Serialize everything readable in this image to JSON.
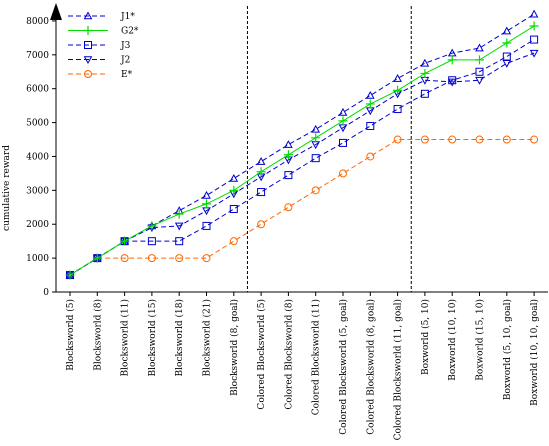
{
  "chart_data": {
    "type": "line",
    "ylabel": "cumulative reward",
    "xlabel": "",
    "ylim": [
      0,
      8500
    ],
    "yticks": [
      0,
      1000,
      2000,
      3000,
      4000,
      5000,
      6000,
      7000,
      8000
    ],
    "grid": false,
    "legend_position": "top-left",
    "categories": [
      "Blocksworld (5)",
      "Blocksworld (8)",
      "Blocksworld (11)",
      "Blocksworld (15)",
      "Blocksworld (18)",
      "Blocksworld (21)",
      "Blocksworld (8, goal)",
      "Colored Blocksworld (5)",
      "Colored Blocksworld (8)",
      "Colored Blocksworld (11)",
      "Colored Blocksworld (5, goal)",
      "Colored Blocksworld (8, goal)",
      "Colored Blocksworld (11, goal)",
      "Boxworld (5, 10)",
      "Boxworld (10, 10)",
      "Boxworld (15, 10)",
      "Boxworld (5, 10, goal)",
      "Boxworld (10, 10, goal)"
    ],
    "separators_after_index": [
      6,
      12
    ],
    "series": [
      {
        "name": "J1*",
        "color": "#0000cc",
        "marker": "triangle-up",
        "values": [
          500,
          1000,
          1500,
          1950,
          2400,
          2850,
          3350,
          3850,
          4350,
          4800,
          5300,
          5800,
          6300,
          6750,
          7050,
          7200,
          7700,
          8200
        ]
      },
      {
        "name": "G2*",
        "color": "#00dd00",
        "marker": "plus",
        "values": [
          500,
          1000,
          1500,
          1950,
          2300,
          2600,
          3000,
          3550,
          4050,
          4550,
          5050,
          5550,
          5950,
          6450,
          6850,
          6850,
          7350,
          7850
        ]
      },
      {
        "name": "J3",
        "color": "#0000cc",
        "marker": "square",
        "values": [
          500,
          1000,
          1500,
          1500,
          1500,
          1950,
          2450,
          2950,
          3450,
          3950,
          4400,
          4900,
          5400,
          5850,
          6250,
          6500,
          6950,
          7450
        ]
      },
      {
        "name": "J2",
        "color": "#0000cc",
        "marker": "triangle-down",
        "values": [
          500,
          1000,
          1500,
          1900,
          1950,
          2400,
          2900,
          3400,
          3900,
          4350,
          4850,
          5350,
          5850,
          6250,
          6200,
          6250,
          6750,
          7050
        ]
      },
      {
        "name": "E*",
        "color": "#ff6600",
        "marker": "circle",
        "values": [
          500,
          1000,
          1000,
          1000,
          1000,
          1000,
          1500,
          2000,
          2500,
          3000,
          3500,
          4000,
          4500,
          4500,
          4500,
          4500,
          4500,
          4500
        ]
      }
    ]
  }
}
